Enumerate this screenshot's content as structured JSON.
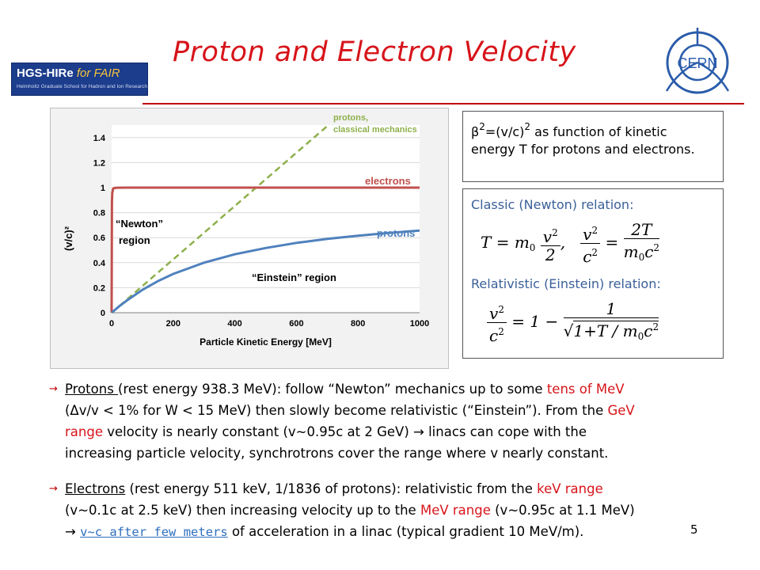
{
  "title": "Proton and Electron Velocity",
  "page_number": "5",
  "logos": {
    "hgs_name": "HGS-HIRe",
    "hgs_fair": "for FAIR",
    "hgs_sub": "Helmholtz Graduate School for Hadron and Ion Research",
    "cern": "CERN"
  },
  "caption": {
    "beta": "β",
    "sup": "2",
    "eq": "=(v/c)",
    "rest": " as function of kinetic energy T for protons and electrons."
  },
  "relations": {
    "classic_label": "Classic (Newton) relation:",
    "relativistic_label": "Relativistic (Einstein) relation:"
  },
  "bullets": [
    {
      "head": "Protons ",
      "t1": "(rest energy 938.3 MeV): follow “Newton” mechanics up to some ",
      "r1": "tens of MeV",
      "t2": "(Δv/v < 1% for W < 15 MeV) then slowly become relativistic (“Einstein”). From the ",
      "r2": "GeV",
      "r3": "range",
      "t3": " velocity is nearly constant (v~0.95c at 2 GeV) → linacs can cope with the",
      "t4": "increasing particle velocity, synchrotrons cover the range where v nearly constant."
    },
    {
      "head": "Electrons",
      "t1": " (rest energy 511 keV, 1/1836 of protons): relativistic from the ",
      "r1": "keV range",
      "t2": "(v~0.1c at 2.5 keV) then increasing velocity up to the ",
      "r2": "MeV range",
      "t3": " (v~0.95c at 1.1 MeV)",
      "t4": "→ ",
      "link": "v~c after few meters",
      "t5": " of acceleration in a linac (typical gradient 10 MeV/m)."
    }
  ],
  "chart_data": {
    "type": "line",
    "title": "",
    "xlabel": "Particle Kinetic Energy [MeV]",
    "ylabel": "(v/c)²",
    "xlim": [
      0,
      1000
    ],
    "ylim": [
      0,
      1.5
    ],
    "x_ticks": [
      0,
      200,
      400,
      600,
      800,
      1000
    ],
    "y_ticks": [
      0,
      0.2,
      0.4,
      0.6,
      0.8,
      1,
      1.2,
      1.4
    ],
    "grid": "horizontal",
    "series": [
      {
        "name": "protons, classical mechanics",
        "style": "dashed",
        "color": "#8db04a",
        "x": [
          0,
          100,
          200,
          300,
          400,
          500,
          600,
          700
        ],
        "y": [
          0,
          0.213,
          0.426,
          0.639,
          0.853,
          1.066,
          1.279,
          1.492
        ]
      },
      {
        "name": "electrons",
        "style": "solid",
        "color": "#c0504d",
        "x": [
          0,
          1,
          2,
          5,
          10,
          20,
          50,
          100,
          200,
          400,
          600,
          800,
          1000
        ],
        "y": [
          0,
          0.886,
          0.957,
          0.9918,
          0.9977,
          0.9994,
          0.9999,
          1.0,
          1.0,
          1.0,
          1.0,
          1.0,
          1.0
        ]
      },
      {
        "name": "protons",
        "style": "solid",
        "color": "#4f81bd",
        "x": [
          0,
          25,
          50,
          100,
          150,
          200,
          300,
          400,
          500,
          600,
          700,
          800,
          900,
          1000
        ],
        "y": [
          0,
          0.052,
          0.099,
          0.183,
          0.252,
          0.31,
          0.4,
          0.467,
          0.517,
          0.558,
          0.59,
          0.616,
          0.638,
          0.657
        ]
      }
    ],
    "annotations": [
      "“Newton” region",
      "“Einstein” region"
    ],
    "colors": {
      "annotation_green": "#8db04a",
      "annotation_red": "#c0504d",
      "annotation_blue": "#4f81bd"
    }
  }
}
